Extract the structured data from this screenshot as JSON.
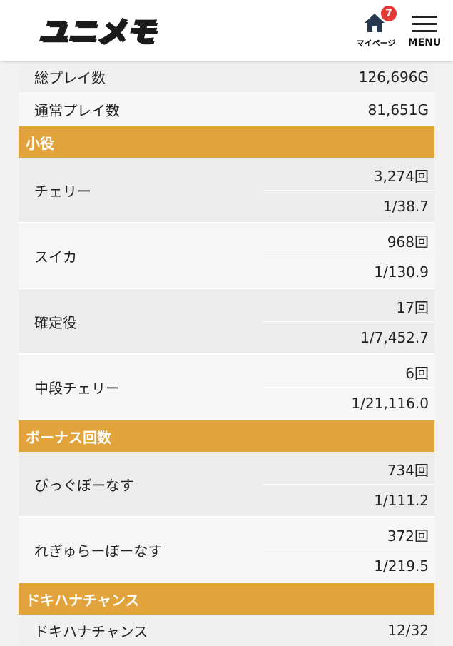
{
  "header": {
    "logo_text": "ユニメモ",
    "mypage_label": "マイページ",
    "badge_count": "7",
    "menu_label": "MENU"
  },
  "summary": [
    {
      "label": "総プレイ数",
      "value": "126,696G"
    },
    {
      "label": "通常プレイ数",
      "value": "81,651G"
    }
  ],
  "sections": [
    {
      "title": "小役",
      "rows": [
        {
          "label": "チェリー",
          "count": "3,274回",
          "rate": "1/38.7"
        },
        {
          "label": "スイカ",
          "count": "968回",
          "rate": "1/130.9"
        },
        {
          "label": "確定役",
          "count": "17回",
          "rate": "1/7,452.7"
        },
        {
          "label": "中段チェリー",
          "count": "6回",
          "rate": "1/21,116.0"
        }
      ]
    },
    {
      "title": "ボーナス回数",
      "rows": [
        {
          "label": "びっぐぼーなす",
          "count": "734回",
          "rate": "1/111.2"
        },
        {
          "label": "れぎゅらーぼーなす",
          "count": "372回",
          "rate": "1/219.5"
        }
      ]
    },
    {
      "title": "ドキハナチャンス",
      "rows": [
        {
          "label": "ドキハナチャンス",
          "value": "12/32"
        }
      ]
    }
  ]
}
